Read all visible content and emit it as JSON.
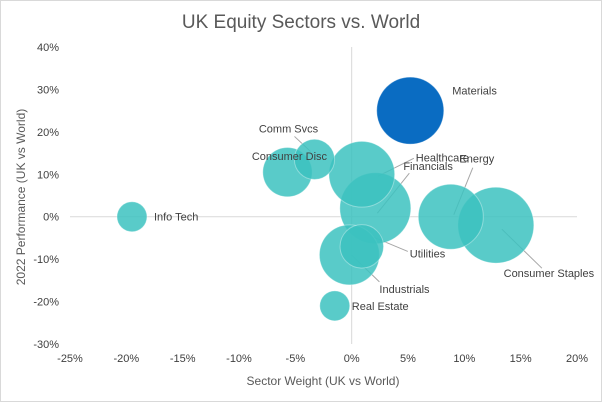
{
  "chart_data": {
    "type": "scatter",
    "subtype": "bubble",
    "title": "UK Equity Sectors vs. World",
    "xlabel": "Sector Weight (UK vs World)",
    "ylabel": "2022 Performance (UK vs World)",
    "xlim": [
      -25,
      20
    ],
    "ylim": [
      -30,
      40
    ],
    "x_ticks": [
      -25,
      -20,
      -15,
      -10,
      -5,
      0,
      5,
      10,
      15,
      20
    ],
    "y_ticks": [
      -30,
      -20,
      -10,
      0,
      10,
      20,
      30,
      40
    ],
    "x_tick_labels": [
      "-25%",
      "-20%",
      "-15%",
      "-10%",
      "-5%",
      "0%",
      "5%",
      "10%",
      "15%",
      "20%"
    ],
    "y_tick_labels": [
      "-30%",
      "-20%",
      "-10%",
      "0%",
      "10%",
      "20%",
      "30%",
      "40%"
    ],
    "grid": false,
    "legend": "none",
    "colors": {
      "default": "#3cc2bf",
      "highlight": "#0a6cc2",
      "axis": "#d9d9d9",
      "leader": "#a6a6a6"
    },
    "points": [
      {
        "label": "Materials",
        "x": 5.2,
        "y": 25.0,
        "size": 5.0,
        "highlight": true
      },
      {
        "label": "Comm Svcs",
        "x": -3.3,
        "y": 13.5,
        "size": 1.8
      },
      {
        "label": "Consumer Disc",
        "x": -5.7,
        "y": 10.5,
        "size": 2.7
      },
      {
        "label": "Healthcare",
        "x": 0.9,
        "y": 10.0,
        "size": 4.8
      },
      {
        "label": "Energy",
        "x": 8.8,
        "y": 0.0,
        "size": 4.7
      },
      {
        "label": "Financials",
        "x": 2.1,
        "y": 2.0,
        "size": 5.6
      },
      {
        "label": "Consumer Staples",
        "x": 12.8,
        "y": -2.0,
        "size": 6.4
      },
      {
        "label": "Info Tech",
        "x": -19.5,
        "y": 0.0,
        "size": 1.0
      },
      {
        "label": "Utilities",
        "x": 0.9,
        "y": -7.0,
        "size": 2.1
      },
      {
        "label": "Industrials",
        "x": -0.2,
        "y": -9.0,
        "size": 4.0
      },
      {
        "label": "Real Estate",
        "x": -1.5,
        "y": -21.0,
        "size": 1.0
      }
    ]
  }
}
